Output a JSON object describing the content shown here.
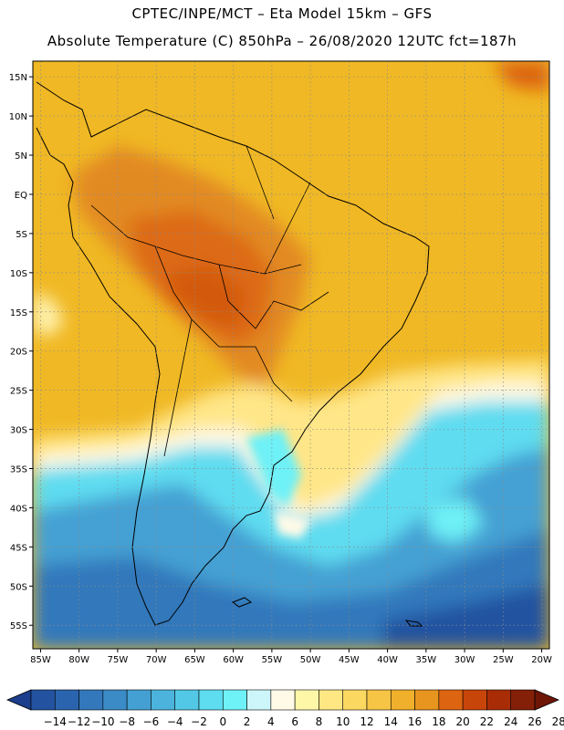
{
  "header": {
    "line1": "CPTEC/INPE/MCT –   Eta Model 15km – GFS",
    "line2": "Absolute Temperature (C) 850hPa – 26/08/2020 12UTC fct=187h"
  },
  "map": {
    "lon_range": [
      -86,
      -19
    ],
    "lat_range": [
      -58,
      17
    ],
    "lat_labels": [
      "15N",
      "10N",
      "5N",
      "EQ",
      "5S",
      "10S",
      "15S",
      "20S",
      "25S",
      "30S",
      "35S",
      "40S",
      "45S",
      "50S",
      "55S"
    ],
    "lon_labels": [
      "85W",
      "80W",
      "75W",
      "70W",
      "65W",
      "60W",
      "55W",
      "50W",
      "45W",
      "40W",
      "35W",
      "30W",
      "25W",
      "20W"
    ],
    "ocean_color": "#f0b824",
    "land_color": "#e28a22"
  },
  "colorbar": {
    "labels": [
      "-14",
      "-12",
      "-10",
      "-8",
      "-6",
      "-4",
      "-2",
      "0",
      "2",
      "4",
      "6",
      "8",
      "10",
      "12",
      "14",
      "16",
      "18",
      "20",
      "22",
      "24",
      "26",
      "28"
    ],
    "colors": [
      "#1c3e8c",
      "#2353a0",
      "#2a64ae",
      "#3378bb",
      "#3b8bc6",
      "#44a0d3",
      "#4cb4dc",
      "#52c8e6",
      "#5edcf0",
      "#6ef1f7",
      "#cdf6fb",
      "#fffae8",
      "#fff7a8",
      "#ffe884",
      "#fbd860",
      "#f6c545",
      "#f0b02c",
      "#e8951f",
      "#dd6410",
      "#c84509",
      "#a82d07",
      "#842008",
      "#6d1606"
    ]
  }
}
